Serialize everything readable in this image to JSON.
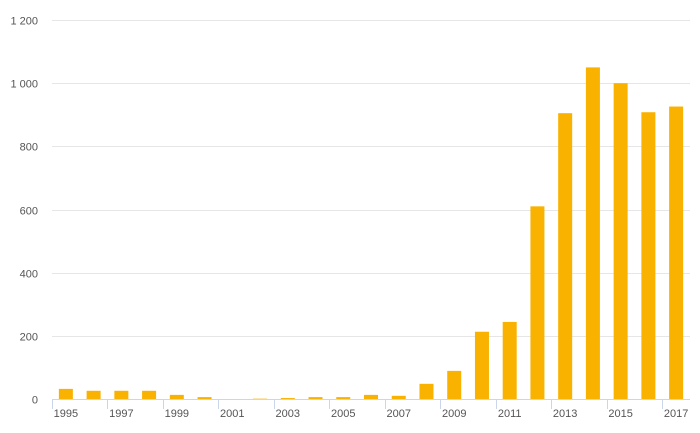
{
  "chart_data": {
    "type": "bar",
    "title": "",
    "xlabel": "",
    "ylabel": "",
    "categories": [
      "1995",
      "1996",
      "1997",
      "1998",
      "1999",
      "2000",
      "2001",
      "2002",
      "2003",
      "2004",
      "2005",
      "2006",
      "2007",
      "2008",
      "2009",
      "2010",
      "2011",
      "2012",
      "2013",
      "2014",
      "2015",
      "2016",
      "2017"
    ],
    "x_tick_labels": [
      "1995",
      "1997",
      "1999",
      "2001",
      "2003",
      "2005",
      "2007",
      "2009",
      "2011",
      "2013",
      "2015",
      "2017"
    ],
    "values": [
      32,
      26,
      26,
      26,
      13,
      6,
      0,
      1,
      3,
      6,
      6,
      13,
      10,
      48,
      89,
      213,
      244,
      610,
      905,
      1050,
      1000,
      908,
      926
    ],
    "ylim": [
      0,
      1200
    ],
    "y_ticks": [
      0,
      200,
      400,
      600,
      800,
      1000,
      1200
    ],
    "y_tick_labels": [
      "0",
      "200",
      "400",
      "600",
      "800",
      "1 000",
      "1 200"
    ],
    "grid": true,
    "legend": "none",
    "bar_color": "#f9b200",
    "grid_color": "#e6e6e6",
    "axis_color": "#ccd6eb"
  }
}
